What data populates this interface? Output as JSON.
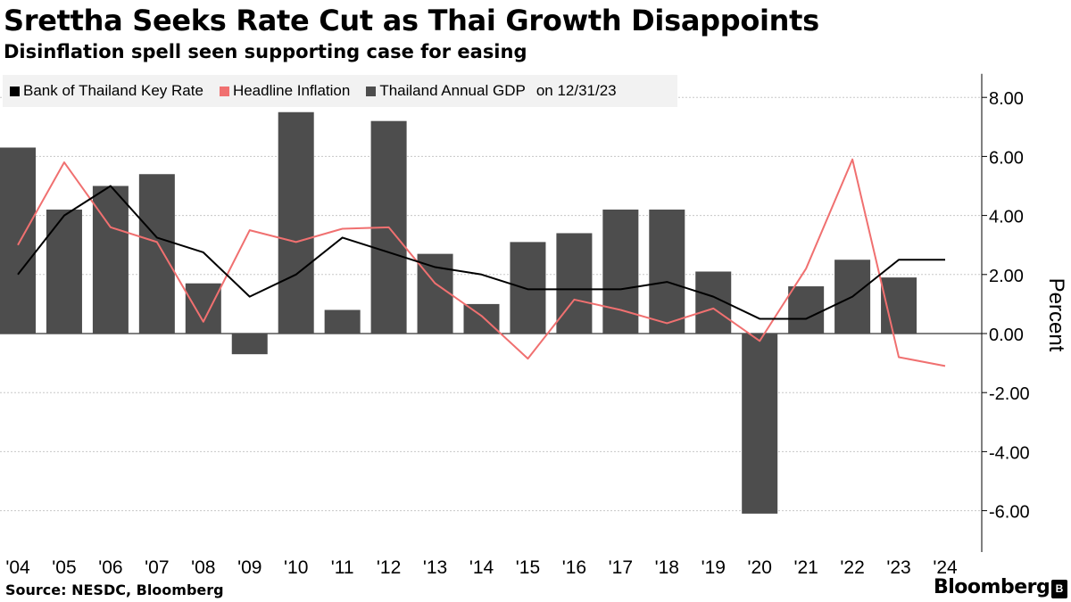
{
  "header": {
    "title": "Srettha Seeks Rate Cut as Thai Growth Disappoints",
    "subtitle": "Disinflation spell seen supporting case for easing"
  },
  "legend": {
    "rate_label": "Bank of Thailand Key Rate",
    "inflation_label": "Headline Inflation",
    "gdp_label": "Thailand Annual GDP",
    "date_label": "on 12/31/23"
  },
  "footer": {
    "source": "Source: NESDC, Bloomberg",
    "brand": "Bloomberg"
  },
  "colors": {
    "rate": "#000000",
    "inflation": "#f07070",
    "gdp": "#4d4d4d",
    "grid": "#c8c8c8"
  },
  "chart_data": {
    "type": "bar",
    "title": "Srettha Seeks Rate Cut as Thai Growth Disappoints",
    "subtitle": "Disinflation spell seen supporting case for easing",
    "xlabel": "",
    "ylabel": "Percent",
    "ylim": [
      -7.4,
      8.8
    ],
    "yticks": [
      8,
      6,
      4,
      2,
      0,
      -2,
      -4,
      -6
    ],
    "ytick_labels": [
      "8.00",
      "6.00",
      "4.00",
      "2.00",
      "0.00",
      "-2.00",
      "-4.00",
      "-6.00"
    ],
    "categories": [
      "'04",
      "'05",
      "'06",
      "'07",
      "'08",
      "'09",
      "'10",
      "'11",
      "'12",
      "'13",
      "'14",
      "'15",
      "'16",
      "'17",
      "'18",
      "'19",
      "'20",
      "'21",
      "'22",
      "'23",
      "'24"
    ],
    "legend_position": "top-left",
    "grid": true,
    "series": [
      {
        "name": "Thailand Annual GDP",
        "kind": "bar",
        "values": [
          6.3,
          4.2,
          5.0,
          5.4,
          1.7,
          -0.7,
          7.5,
          0.8,
          7.2,
          2.7,
          1.0,
          3.1,
          3.4,
          4.2,
          4.2,
          2.1,
          -6.1,
          1.6,
          2.5,
          1.9,
          null
        ]
      },
      {
        "name": "Headline Inflation",
        "kind": "line",
        "values": [
          3.0,
          5.8,
          3.6,
          3.1,
          0.4,
          3.5,
          3.1,
          3.55,
          3.6,
          1.7,
          0.6,
          -0.85,
          1.15,
          0.8,
          0.35,
          0.85,
          -0.25,
          2.2,
          5.9,
          -0.8,
          -1.1
        ]
      },
      {
        "name": "Bank of Thailand Key Rate",
        "kind": "line",
        "values": [
          2.0,
          4.0,
          5.0,
          3.25,
          2.75,
          1.25,
          2.0,
          3.25,
          2.75,
          2.25,
          2.0,
          1.5,
          1.5,
          1.5,
          1.75,
          1.25,
          0.5,
          0.5,
          1.25,
          2.5,
          2.5
        ]
      }
    ]
  }
}
